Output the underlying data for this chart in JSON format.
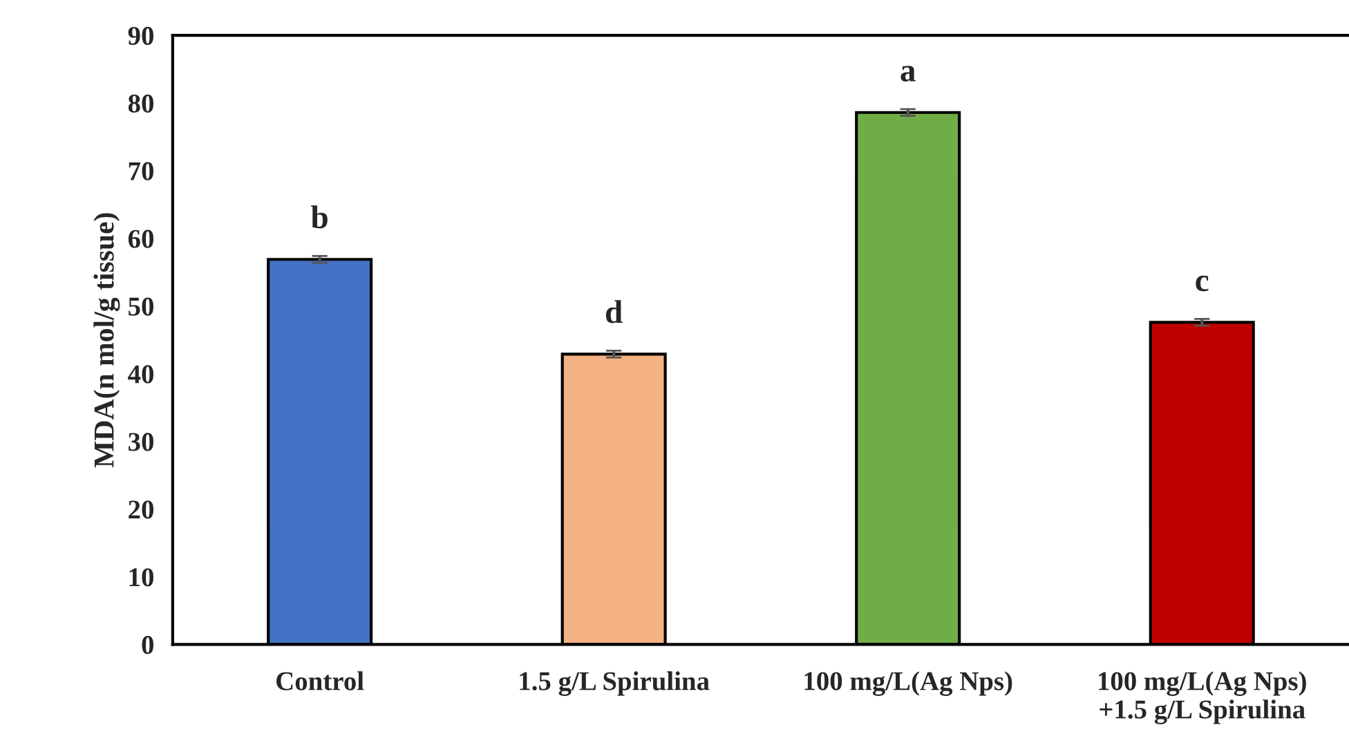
{
  "chart_data": {
    "type": "bar",
    "ylabel": "MDA(n mol/g tissue)",
    "categories": [
      "Control",
      "1.5 g/L Spirulina",
      "100 mg/L(Ag Nps)",
      "100 mg/L(Ag Nps)\n+1.5 g/L Spirulina"
    ],
    "values": [
      56.9,
      42.9,
      78.6,
      47.6
    ],
    "errors": [
      0.5,
      0.5,
      0.5,
      0.5
    ],
    "colors": [
      "#4472c4",
      "#f4b183",
      "#70ad47",
      "#c00000"
    ],
    "ylim": [
      0,
      90
    ],
    "yticks": [
      0,
      10,
      20,
      30,
      40,
      50,
      60,
      70,
      80,
      90
    ],
    "annotations": [
      {
        "text": "b",
        "x": "Control",
        "y": 56.9
      },
      {
        "text": "d",
        "x": "1.5 g/L Spirulina",
        "y": 42.9
      },
      {
        "text": "a",
        "x": "100 mg/L(Ag Nps)",
        "y": 78.6
      },
      {
        "text": "c",
        "x": "100 mg/L(Ag Nps)\n+1.5 g/L Spirulina",
        "y": 47.6
      }
    ],
    "grid": false,
    "legend": false
  }
}
